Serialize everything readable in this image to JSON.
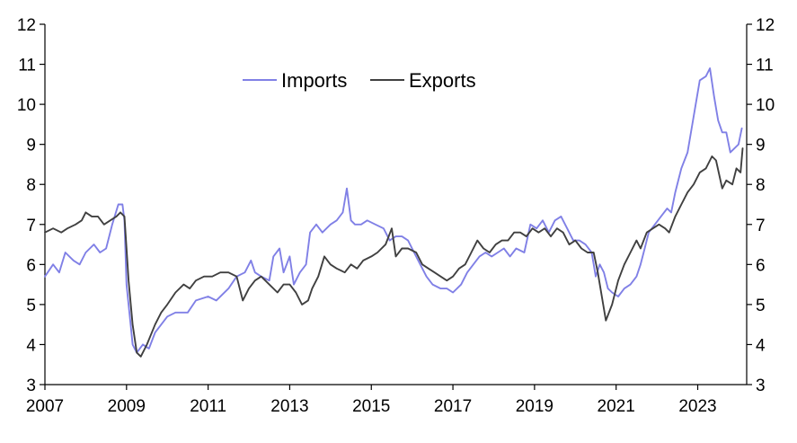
{
  "chart_data": {
    "type": "line",
    "title": "",
    "xlabel": "",
    "ylabel": "",
    "xlim": [
      2007.0,
      2024.2
    ],
    "ylim": [
      3,
      12
    ],
    "x_ticks": [
      "2007",
      "2009",
      "2011",
      "2013",
      "2015",
      "2017",
      "2019",
      "2021",
      "2023"
    ],
    "y_ticks": [
      "3",
      "4",
      "5",
      "6",
      "7",
      "8",
      "9",
      "10",
      "11",
      "12"
    ],
    "grid": false,
    "legend_position": "top-center",
    "series": [
      {
        "name": "Imports",
        "color": "#8080e6",
        "points": [
          [
            2007.0,
            5.7
          ],
          [
            2007.2,
            6.0
          ],
          [
            2007.35,
            5.8
          ],
          [
            2007.5,
            6.3
          ],
          [
            2007.7,
            6.1
          ],
          [
            2007.85,
            6.0
          ],
          [
            2008.0,
            6.3
          ],
          [
            2008.2,
            6.5
          ],
          [
            2008.35,
            6.3
          ],
          [
            2008.5,
            6.4
          ],
          [
            2008.65,
            7.0
          ],
          [
            2008.8,
            7.5
          ],
          [
            2008.9,
            7.5
          ],
          [
            2008.95,
            7.1
          ],
          [
            2009.0,
            5.5
          ],
          [
            2009.1,
            4.5
          ],
          [
            2009.15,
            4.0
          ],
          [
            2009.25,
            3.8
          ],
          [
            2009.4,
            4.0
          ],
          [
            2009.55,
            3.9
          ],
          [
            2009.7,
            4.3
          ],
          [
            2009.85,
            4.5
          ],
          [
            2010.0,
            4.7
          ],
          [
            2010.2,
            4.8
          ],
          [
            2010.5,
            4.8
          ],
          [
            2010.7,
            5.1
          ],
          [
            2011.0,
            5.2
          ],
          [
            2011.2,
            5.1
          ],
          [
            2011.5,
            5.4
          ],
          [
            2011.7,
            5.7
          ],
          [
            2011.9,
            5.8
          ],
          [
            2012.05,
            6.1
          ],
          [
            2012.15,
            5.8
          ],
          [
            2012.3,
            5.7
          ],
          [
            2012.5,
            5.6
          ],
          [
            2012.6,
            6.2
          ],
          [
            2012.75,
            6.4
          ],
          [
            2012.85,
            5.8
          ],
          [
            2013.0,
            6.2
          ],
          [
            2013.1,
            5.5
          ],
          [
            2013.25,
            5.8
          ],
          [
            2013.4,
            6.0
          ],
          [
            2013.5,
            6.8
          ],
          [
            2013.65,
            7.0
          ],
          [
            2013.8,
            6.8
          ],
          [
            2014.0,
            7.0
          ],
          [
            2014.15,
            7.1
          ],
          [
            2014.3,
            7.3
          ],
          [
            2014.4,
            7.9
          ],
          [
            2014.5,
            7.1
          ],
          [
            2014.6,
            7.0
          ],
          [
            2014.75,
            7.0
          ],
          [
            2014.9,
            7.1
          ],
          [
            2015.1,
            7.0
          ],
          [
            2015.3,
            6.9
          ],
          [
            2015.45,
            6.6
          ],
          [
            2015.6,
            6.7
          ],
          [
            2015.75,
            6.7
          ],
          [
            2015.9,
            6.6
          ],
          [
            2016.05,
            6.3
          ],
          [
            2016.2,
            6.0
          ],
          [
            2016.35,
            5.7
          ],
          [
            2016.5,
            5.5
          ],
          [
            2016.7,
            5.4
          ],
          [
            2016.85,
            5.4
          ],
          [
            2017.0,
            5.3
          ],
          [
            2017.2,
            5.5
          ],
          [
            2017.35,
            5.8
          ],
          [
            2017.5,
            6.0
          ],
          [
            2017.65,
            6.2
          ],
          [
            2017.8,
            6.3
          ],
          [
            2017.95,
            6.2
          ],
          [
            2018.1,
            6.3
          ],
          [
            2018.25,
            6.4
          ],
          [
            2018.4,
            6.2
          ],
          [
            2018.55,
            6.4
          ],
          [
            2018.75,
            6.3
          ],
          [
            2018.9,
            7.0
          ],
          [
            2019.05,
            6.9
          ],
          [
            2019.2,
            7.1
          ],
          [
            2019.35,
            6.8
          ],
          [
            2019.5,
            7.1
          ],
          [
            2019.65,
            7.2
          ],
          [
            2019.8,
            6.9
          ],
          [
            2019.95,
            6.6
          ],
          [
            2020.1,
            6.6
          ],
          [
            2020.25,
            6.5
          ],
          [
            2020.4,
            6.3
          ],
          [
            2020.5,
            5.7
          ],
          [
            2020.6,
            6.0
          ],
          [
            2020.7,
            5.8
          ],
          [
            2020.8,
            5.4
          ],
          [
            2020.9,
            5.3
          ],
          [
            2021.05,
            5.2
          ],
          [
            2021.2,
            5.4
          ],
          [
            2021.35,
            5.5
          ],
          [
            2021.5,
            5.7
          ],
          [
            2021.6,
            6.0
          ],
          [
            2021.7,
            6.4
          ],
          [
            2021.8,
            6.8
          ],
          [
            2021.95,
            7.0
          ],
          [
            2022.1,
            7.2
          ],
          [
            2022.25,
            7.4
          ],
          [
            2022.35,
            7.3
          ],
          [
            2022.45,
            7.8
          ],
          [
            2022.6,
            8.4
          ],
          [
            2022.75,
            8.8
          ],
          [
            2022.9,
            9.7
          ],
          [
            2023.05,
            10.6
          ],
          [
            2023.2,
            10.7
          ],
          [
            2023.3,
            10.9
          ],
          [
            2023.4,
            10.2
          ],
          [
            2023.5,
            9.6
          ],
          [
            2023.6,
            9.3
          ],
          [
            2023.7,
            9.3
          ],
          [
            2023.8,
            8.8
          ],
          [
            2023.9,
            8.9
          ],
          [
            2024.0,
            9.0
          ],
          [
            2024.08,
            9.4
          ]
        ]
      },
      {
        "name": "Exports",
        "color": "#404040",
        "points": [
          [
            2007.0,
            6.8
          ],
          [
            2007.2,
            6.9
          ],
          [
            2007.4,
            6.8
          ],
          [
            2007.55,
            6.9
          ],
          [
            2007.75,
            7.0
          ],
          [
            2007.9,
            7.1
          ],
          [
            2008.0,
            7.3
          ],
          [
            2008.15,
            7.2
          ],
          [
            2008.3,
            7.2
          ],
          [
            2008.45,
            7.0
          ],
          [
            2008.6,
            7.1
          ],
          [
            2008.75,
            7.2
          ],
          [
            2008.85,
            7.3
          ],
          [
            2008.95,
            7.2
          ],
          [
            2009.05,
            5.6
          ],
          [
            2009.15,
            4.5
          ],
          [
            2009.25,
            3.8
          ],
          [
            2009.35,
            3.7
          ],
          [
            2009.5,
            4.0
          ],
          [
            2009.7,
            4.5
          ],
          [
            2009.85,
            4.8
          ],
          [
            2010.0,
            5.0
          ],
          [
            2010.2,
            5.3
          ],
          [
            2010.4,
            5.5
          ],
          [
            2010.55,
            5.4
          ],
          [
            2010.7,
            5.6
          ],
          [
            2010.9,
            5.7
          ],
          [
            2011.1,
            5.7
          ],
          [
            2011.3,
            5.8
          ],
          [
            2011.5,
            5.8
          ],
          [
            2011.7,
            5.7
          ],
          [
            2011.85,
            5.1
          ],
          [
            2012.0,
            5.4
          ],
          [
            2012.15,
            5.6
          ],
          [
            2012.3,
            5.7
          ],
          [
            2012.5,
            5.5
          ],
          [
            2012.7,
            5.3
          ],
          [
            2012.85,
            5.5
          ],
          [
            2013.0,
            5.5
          ],
          [
            2013.15,
            5.3
          ],
          [
            2013.3,
            5.0
          ],
          [
            2013.45,
            5.1
          ],
          [
            2013.55,
            5.4
          ],
          [
            2013.7,
            5.7
          ],
          [
            2013.85,
            6.2
          ],
          [
            2014.0,
            6.0
          ],
          [
            2014.15,
            5.9
          ],
          [
            2014.35,
            5.8
          ],
          [
            2014.5,
            6.0
          ],
          [
            2014.65,
            5.9
          ],
          [
            2014.8,
            6.1
          ],
          [
            2015.0,
            6.2
          ],
          [
            2015.15,
            6.3
          ],
          [
            2015.35,
            6.5
          ],
          [
            2015.5,
            6.9
          ],
          [
            2015.6,
            6.2
          ],
          [
            2015.75,
            6.4
          ],
          [
            2015.9,
            6.4
          ],
          [
            2016.1,
            6.3
          ],
          [
            2016.25,
            6.0
          ],
          [
            2016.4,
            5.9
          ],
          [
            2016.55,
            5.8
          ],
          [
            2016.7,
            5.7
          ],
          [
            2016.85,
            5.6
          ],
          [
            2017.0,
            5.7
          ],
          [
            2017.15,
            5.9
          ],
          [
            2017.3,
            6.0
          ],
          [
            2017.45,
            6.3
          ],
          [
            2017.6,
            6.6
          ],
          [
            2017.75,
            6.4
          ],
          [
            2017.9,
            6.3
          ],
          [
            2018.05,
            6.5
          ],
          [
            2018.2,
            6.6
          ],
          [
            2018.35,
            6.6
          ],
          [
            2018.5,
            6.8
          ],
          [
            2018.65,
            6.8
          ],
          [
            2018.8,
            6.7
          ],
          [
            2018.95,
            6.9
          ],
          [
            2019.1,
            6.8
          ],
          [
            2019.25,
            6.9
          ],
          [
            2019.4,
            6.7
          ],
          [
            2019.55,
            6.9
          ],
          [
            2019.7,
            6.8
          ],
          [
            2019.85,
            6.5
          ],
          [
            2020.0,
            6.6
          ],
          [
            2020.15,
            6.4
          ],
          [
            2020.3,
            6.3
          ],
          [
            2020.45,
            6.3
          ],
          [
            2020.55,
            5.8
          ],
          [
            2020.65,
            5.2
          ],
          [
            2020.75,
            4.6
          ],
          [
            2020.9,
            5.0
          ],
          [
            2021.05,
            5.6
          ],
          [
            2021.2,
            6.0
          ],
          [
            2021.35,
            6.3
          ],
          [
            2021.5,
            6.6
          ],
          [
            2021.6,
            6.4
          ],
          [
            2021.75,
            6.8
          ],
          [
            2021.9,
            6.9
          ],
          [
            2022.05,
            7.0
          ],
          [
            2022.2,
            6.9
          ],
          [
            2022.3,
            6.8
          ],
          [
            2022.45,
            7.2
          ],
          [
            2022.6,
            7.5
          ],
          [
            2022.75,
            7.8
          ],
          [
            2022.9,
            8.0
          ],
          [
            2023.05,
            8.3
          ],
          [
            2023.2,
            8.4
          ],
          [
            2023.35,
            8.7
          ],
          [
            2023.45,
            8.6
          ],
          [
            2023.6,
            7.9
          ],
          [
            2023.7,
            8.1
          ],
          [
            2023.85,
            8.0
          ],
          [
            2023.95,
            8.4
          ],
          [
            2024.05,
            8.3
          ],
          [
            2024.1,
            8.9
          ]
        ]
      }
    ]
  }
}
